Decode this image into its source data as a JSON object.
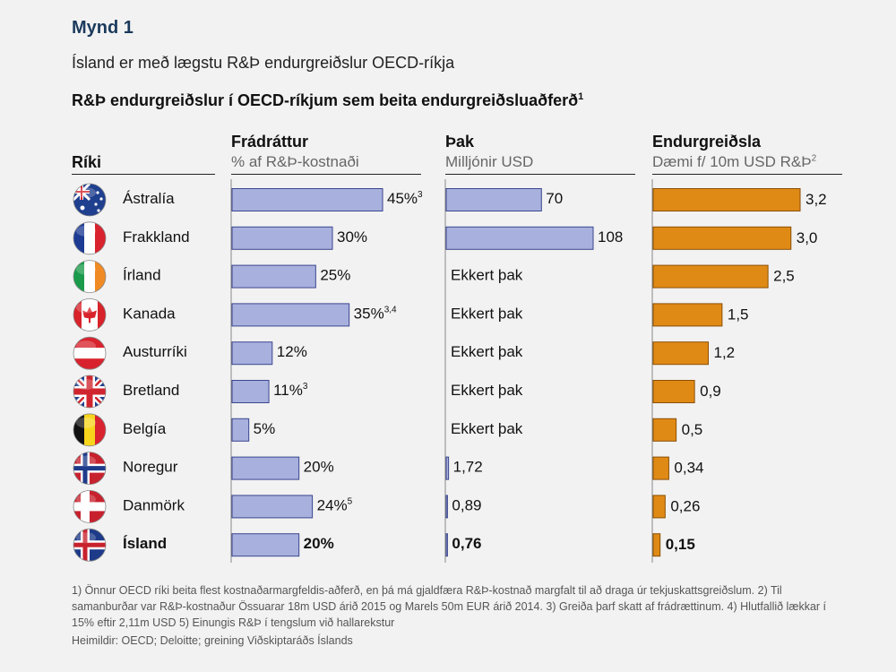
{
  "figure_label": "Mynd 1",
  "subtitle": "Ísland er með lægstu R&Þ endurgreiðslur OECD-ríkja",
  "title_text": "R&Þ endurgreiðslur í OECD-ríkjum sem beita endurgreiðsluaðferð",
  "title_sup": "1",
  "columns": {
    "country": {
      "header": "Ríki"
    },
    "deduction": {
      "header": "Frádráttur",
      "sub": "% af R&Þ-kostnaði"
    },
    "cap": {
      "header": "Þak",
      "sub": "Milljónir USD"
    },
    "refund": {
      "header": "Endurgreiðsla",
      "sub": "Dæmi f/ 10m USD R&Þ",
      "sub_sup": "2"
    }
  },
  "colors": {
    "deduction_bar": "#a8b0dd",
    "deduction_stroke": "#3b4690",
    "refund_bar": "#e08a16",
    "refund_stroke": "#8a4f05",
    "axis": "#888888"
  },
  "chart_data": {
    "type": "bar",
    "categories": [
      "Ástralía",
      "Frakkland",
      "Írland",
      "Kanada",
      "Austurríki",
      "Bretland",
      "Belgía",
      "Noregur",
      "Danmörk",
      "Ísland"
    ],
    "flags": [
      "australia-flag-icon",
      "france-flag-icon",
      "ireland-flag-icon",
      "canada-flag-icon",
      "austria-flag-icon",
      "uk-flag-icon",
      "belgium-flag-icon",
      "norway-flag-icon",
      "denmark-flag-icon",
      "iceland-flag-icon"
    ],
    "highlight_index": 9,
    "series": [
      {
        "name": "Frádráttur",
        "values": [
          45,
          30,
          25,
          35,
          12,
          11,
          5,
          20,
          24,
          20
        ],
        "labels": [
          "45%",
          "30%",
          "25%",
          "35%",
          "12%",
          "11%",
          "5%",
          "20%",
          "24%",
          "20%"
        ],
        "label_sups": [
          "3",
          "",
          "",
          "3,4",
          "",
          "3",
          "",
          "",
          "5",
          ""
        ]
      },
      {
        "name": "Þak",
        "values": [
          70,
          108,
          null,
          null,
          null,
          null,
          null,
          1.72,
          0.89,
          0.76
        ],
        "labels": [
          "70",
          "108",
          "Ekkert þak",
          "Ekkert þak",
          "Ekkert þak",
          "Ekkert þak",
          "Ekkert þak",
          "1,72",
          "0,89",
          "0,76"
        ]
      },
      {
        "name": "Endurgreiðsla",
        "values": [
          3.2,
          3.0,
          2.5,
          1.5,
          1.2,
          0.9,
          0.5,
          0.34,
          0.26,
          0.15
        ],
        "labels": [
          "3,2",
          "3,0",
          "2,5",
          "1,5",
          "1,2",
          "0,9",
          "0,5",
          "0,34",
          "0,26",
          "0,15"
        ]
      }
    ]
  },
  "footnote": "1) Önnur OECD ríki beita flest kostnaðarmargfeldis-aðferð, en þá má gjaldfæra R&Þ-kostnað margfalt til að draga úr tekjuskattsgreiðslum. 2) Til samanburðar var R&Þ-kostnaður Össuarar 18m USD árið 2015 og Marels 50m EUR árið 2014. 3) Greiða þarf skatt af frádrættinum. 4) Hlutfallið lækkar í 15% eftir 2,11m  USD 5) Einungis R&Þ í tengslum við hallarekstur",
  "source": "Heimildir: OECD; Deloitte; greining Viðskiptaráðs Íslands"
}
